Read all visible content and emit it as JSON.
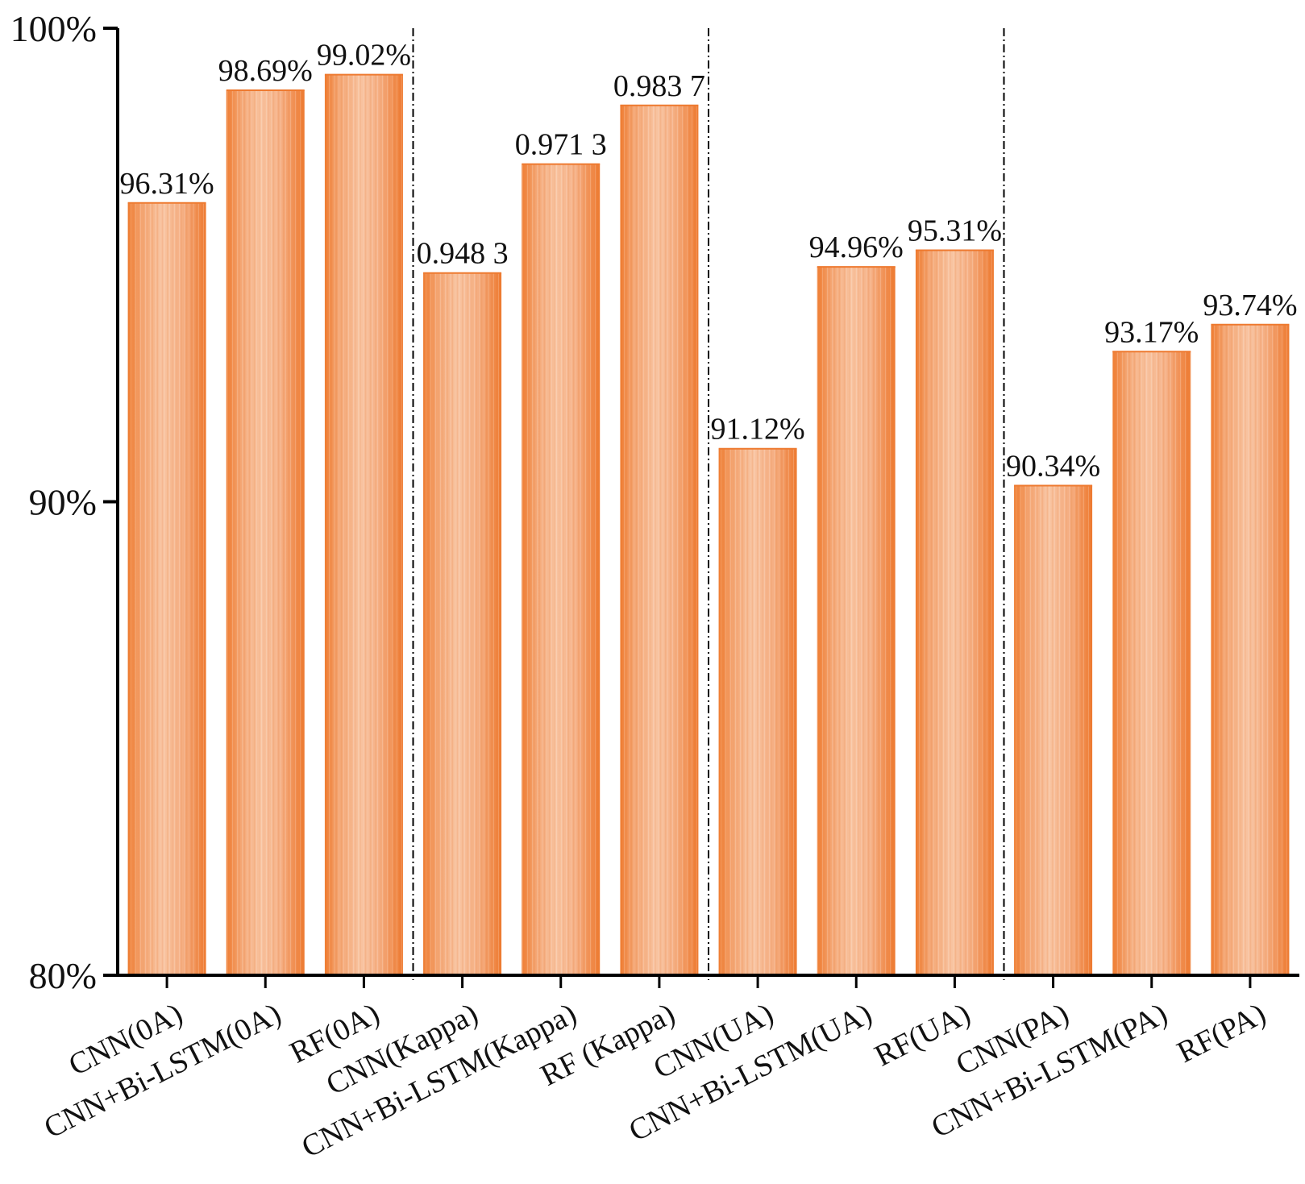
{
  "chart_data": {
    "type": "bar",
    "title": "",
    "xlabel": "",
    "ylabel": "",
    "ylim": [
      80,
      100
    ],
    "yticks": [
      80,
      90,
      100
    ],
    "ytick_labels": [
      "80%",
      "90%",
      "100%"
    ],
    "categories": [
      "CNN(0A)",
      "CNN+Bi-LSTM(0A)",
      "RF(0A)",
      "CNN(Kappa)",
      "CNN+Bi-LSTM(Kappa)",
      "RF (Kappa)",
      "CNN(UA)",
      "CNN+Bi-LSTM(UA)",
      "RF(UA)",
      "CNN(PA)",
      "CNN+Bi-LSTM(PA)",
      "RF(PA)"
    ],
    "values": [
      96.31,
      98.69,
      99.02,
      94.83,
      97.13,
      98.37,
      91.12,
      94.96,
      95.31,
      90.34,
      93.17,
      93.74
    ],
    "data_labels": [
      "96.31%",
      "98.69%",
      "99.02%",
      "0.948 3",
      "0.971 3",
      "0.983 7",
      "91.12%",
      "94.96%",
      "95.31%",
      "90.34%",
      "93.17%",
      "93.74%"
    ],
    "group_separators_after": [
      3,
      6,
      9
    ],
    "grid": false,
    "legend": "none",
    "colors": {
      "bar_edge": "#ef7d32",
      "bar_center": "#f7bc96",
      "axis": "#000000"
    }
  }
}
